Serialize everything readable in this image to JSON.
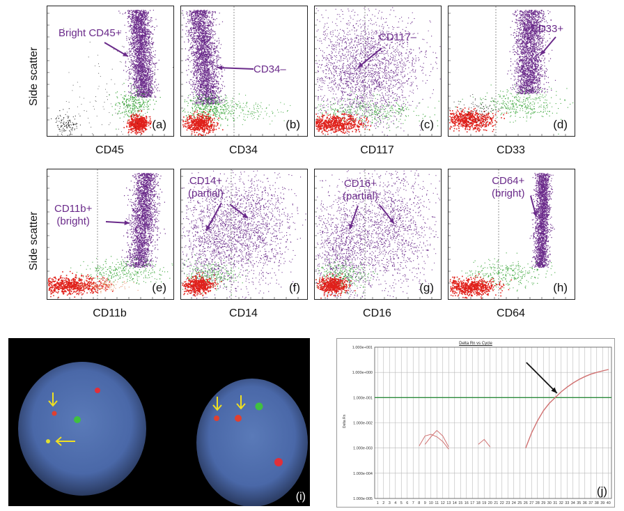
{
  "flow_panels": [
    {
      "letter": "(a)",
      "xlabel": "CD45",
      "annotation": "Bright CD45+",
      "pattern": "bright"
    },
    {
      "letter": "(b)",
      "xlabel": "CD34",
      "annotation": "CD34–",
      "pattern": "neg",
      "gate": true
    },
    {
      "letter": "(c)",
      "xlabel": "CD117",
      "annotation": "CD117–",
      "pattern": "neg-wide",
      "gate": true
    },
    {
      "letter": "(d)",
      "xlabel": "CD33",
      "annotation": "CD33+",
      "pattern": "pos",
      "gate": true
    },
    {
      "letter": "(e)",
      "xlabel": "CD11b",
      "annotation": "CD11b+\n(bright)",
      "pattern": "pos-bright",
      "gate": true
    },
    {
      "letter": "(f)",
      "xlabel": "CD14",
      "annotation": "CD14+\n(partial)",
      "pattern": "partial",
      "gate": true
    },
    {
      "letter": "(g)",
      "xlabel": "CD16",
      "annotation": "CD16+\n(partial)",
      "pattern": "partial",
      "gate": true
    },
    {
      "letter": "(h)",
      "xlabel": "CD64",
      "annotation": "CD64+\n(bright)",
      "pattern": "bright-narrow",
      "gate": true
    }
  ],
  "ylabel": "Side scatter",
  "fish": {
    "letter": "(i)"
  },
  "chart_data": {
    "type": "line",
    "title": "Delta Rn vs Cycle",
    "ylabel": "Delta Rn",
    "xlabel": "",
    "y_scale": "log",
    "ylim": [
      1e-05,
      10
    ],
    "y_ticks": [
      "1.000e+001",
      "1.000e+000",
      "1.000e-001",
      "1.000e-002",
      "1.000e-003",
      "1.000e-004",
      "1.000e-005"
    ],
    "xlim": [
      1,
      40
    ],
    "threshold": 0.1,
    "series": [
      {
        "x": [
          26,
          27,
          28,
          29,
          30,
          31,
          32,
          33,
          34,
          35,
          36,
          37,
          38,
          39,
          40
        ],
        "y": [
          0.001,
          0.004,
          0.012,
          0.03,
          0.06,
          0.1,
          0.17,
          0.26,
          0.38,
          0.52,
          0.68,
          0.85,
          1.0,
          1.15,
          1.3
        ]
      },
      {
        "x": [
          8,
          9,
          10,
          11,
          12,
          13
        ],
        "y": [
          0.0012,
          0.003,
          0.0035,
          0.0028,
          0.0018,
          0.0009
        ]
      },
      {
        "x": [
          9,
          10,
          11,
          12,
          13
        ],
        "y": [
          0.0014,
          0.0028,
          0.005,
          0.003,
          0.0011
        ]
      },
      {
        "x": [
          18,
          19,
          20
        ],
        "y": [
          0.0014,
          0.0022,
          0.0011
        ]
      }
    ],
    "annotation_letter": "(j)",
    "colors": {
      "curve": "#d07070",
      "threshold": "#2a8a3a",
      "grid": "#b8b8b8",
      "arrow": "#111111"
    }
  },
  "colors": {
    "purple": "#6a2a8a",
    "green": "#3aa63a",
    "red": "#e0201a",
    "black": "#111111",
    "yellow": "#f0e020"
  }
}
